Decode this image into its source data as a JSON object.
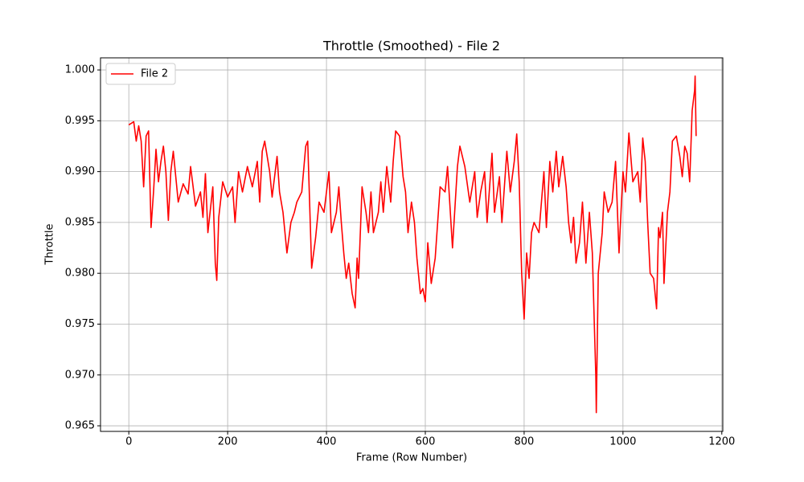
{
  "chart_data": {
    "type": "line",
    "title": "Throttle (Smoothed) - File 2",
    "xlabel": "Frame (Row Number)",
    "ylabel": "Throttle",
    "legend": "upper left",
    "grid": true,
    "xlim": [
      -57.3,
      1202
    ],
    "xticks": [
      0,
      200,
      400,
      600,
      800,
      1000,
      1200
    ],
    "ylim": [
      0.96445,
      1.00119
    ],
    "yticks": [
      0.965,
      {
        "value": 0.97,
        "label": "0.970"
      },
      0.975,
      {
        "value": 0.98,
        "label": "0.980"
      },
      0.985,
      {
        "value": 0.99,
        "label": "0.990"
      },
      0.995,
      {
        "value": 1.0,
        "label": "1.000"
      }
    ],
    "x": [
      0,
      10,
      15,
      20,
      25,
      30,
      35,
      40,
      45,
      50,
      55,
      60,
      65,
      70,
      75,
      80,
      85,
      90,
      95,
      100,
      110,
      120,
      125,
      135,
      145,
      150,
      155,
      160,
      170,
      175,
      178,
      182,
      190,
      200,
      210,
      215,
      222,
      230,
      240,
      250,
      260,
      265,
      270,
      275,
      285,
      290,
      300,
      305,
      312,
      320,
      328,
      335,
      340,
      350,
      358,
      362,
      370,
      378,
      385,
      395,
      405,
      410,
      420,
      425,
      430,
      435,
      440,
      445,
      452,
      458,
      462,
      465,
      472,
      480,
      485,
      490,
      495,
      505,
      510,
      515,
      522,
      530,
      535,
      540,
      548,
      555,
      560,
      565,
      572,
      578,
      583,
      590,
      595,
      600,
      605,
      612,
      620,
      630,
      640,
      645,
      655,
      665,
      670,
      680,
      690,
      700,
      705,
      712,
      720,
      725,
      735,
      740,
      750,
      755,
      765,
      772,
      780,
      785,
      790,
      795,
      800,
      805,
      810,
      815,
      820,
      830,
      835,
      840,
      845,
      852,
      858,
      865,
      870,
      878,
      885,
      890,
      895,
      900,
      905,
      912,
      918,
      925,
      932,
      938,
      942,
      945,
      946,
      950,
      958,
      962,
      970,
      978,
      985,
      992,
      1000,
      1005,
      1012,
      1020,
      1030,
      1035,
      1040,
      1045,
      1050,
      1055,
      1062,
      1068,
      1072,
      1075,
      1080,
      1083,
      1090,
      1095,
      1100,
      1108,
      1115,
      1120,
      1125,
      1130,
      1135,
      1140,
      1145,
      1146,
      1148
    ],
    "series": [
      {
        "name": "File 2",
        "color": "#ff0000",
        "values": [
          0.9946,
          0.9949,
          0.993,
          0.9945,
          0.993,
          0.9885,
          0.9935,
          0.994,
          0.9845,
          0.988,
          0.9922,
          0.989,
          0.991,
          0.9925,
          0.99,
          0.9852,
          0.99,
          0.992,
          0.9895,
          0.987,
          0.9888,
          0.9878,
          0.9905,
          0.9866,
          0.988,
          0.9855,
          0.9898,
          0.984,
          0.9885,
          0.981,
          0.9793,
          0.9855,
          0.989,
          0.9875,
          0.9885,
          0.985,
          0.99,
          0.988,
          0.9905,
          0.9885,
          0.991,
          0.987,
          0.992,
          0.993,
          0.99,
          0.9875,
          0.9915,
          0.988,
          0.986,
          0.982,
          0.985,
          0.986,
          0.987,
          0.988,
          0.9925,
          0.993,
          0.9805,
          0.9835,
          0.987,
          0.986,
          0.99,
          0.984,
          0.986,
          0.9885,
          0.985,
          0.982,
          0.9795,
          0.981,
          0.978,
          0.9766,
          0.9815,
          0.9795,
          0.9885,
          0.986,
          0.984,
          0.988,
          0.984,
          0.986,
          0.989,
          0.986,
          0.9905,
          0.987,
          0.991,
          0.994,
          0.9935,
          0.9895,
          0.988,
          0.984,
          0.987,
          0.985,
          0.9815,
          0.978,
          0.9785,
          0.9772,
          0.983,
          0.979,
          0.9815,
          0.9885,
          0.988,
          0.9905,
          0.9825,
          0.9905,
          0.9925,
          0.9905,
          0.987,
          0.99,
          0.9855,
          0.988,
          0.99,
          0.985,
          0.9918,
          0.986,
          0.9895,
          0.985,
          0.992,
          0.988,
          0.991,
          0.9937,
          0.989,
          0.98,
          0.9755,
          0.982,
          0.9795,
          0.984,
          0.985,
          0.984,
          0.987,
          0.99,
          0.9845,
          0.991,
          0.988,
          0.992,
          0.9885,
          0.9915,
          0.9885,
          0.985,
          0.983,
          0.9855,
          0.981,
          0.983,
          0.987,
          0.981,
          0.986,
          0.982,
          0.975,
          0.97,
          0.9663,
          0.98,
          0.984,
          0.988,
          0.986,
          0.987,
          0.991,
          0.982,
          0.99,
          0.988,
          0.9938,
          0.989,
          0.99,
          0.987,
          0.9933,
          0.991,
          0.985,
          0.98,
          0.9795,
          0.9765,
          0.9845,
          0.9835,
          0.986,
          0.979,
          0.986,
          0.988,
          0.993,
          0.9935,
          0.9915,
          0.9895,
          0.9925,
          0.9918,
          0.989,
          0.996,
          0.998,
          0.9994,
          0.9935
        ]
      }
    ]
  }
}
